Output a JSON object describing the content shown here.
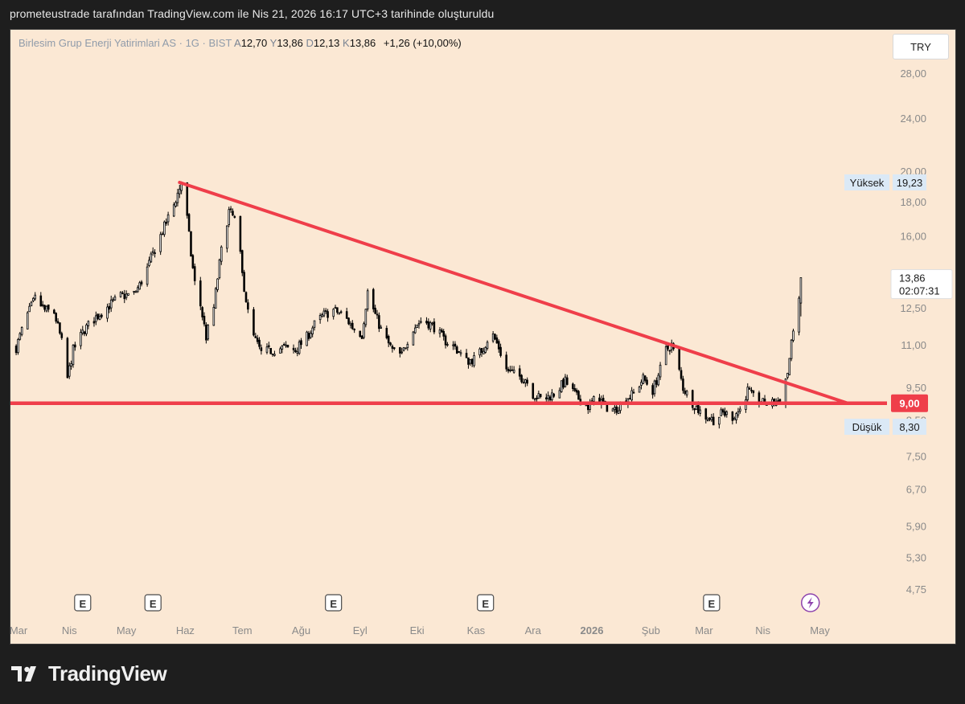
{
  "caption": "prometeustrade tarafından TradingView.com ile Nis 21, 2026 16:17 UTC+3 tarihinde oluşturuldu",
  "legend": {
    "symbol": "Birlesim Grup Enerji Yatirimlari AS · 1G · BIST",
    "open_label": "A",
    "open": "12,70",
    "high_label": "Y",
    "high": "13,86",
    "low_label": "D",
    "low": "12,13",
    "close_label": "K",
    "close": "13,86",
    "change": "+1,26 (+10,00%)"
  },
  "currency": "TRY",
  "brand": "TradingView",
  "chart_data": {
    "type": "candlestick",
    "y_scale": "log",
    "ylim": [
      4.4,
      31
    ],
    "y_ticks": [
      "28,00",
      "24,00",
      "20,00",
      "18,00",
      "16,00",
      "12,50",
      "11,00",
      "9,50",
      "8,50",
      "7,50",
      "6,70",
      "5,90",
      "5,30",
      "4,75"
    ],
    "x_labels": [
      "Mar",
      "Nis",
      "May",
      "Haz",
      "Tem",
      "Ağu",
      "Eyl",
      "Eki",
      "Kas",
      "Ara",
      "2026",
      "Şub",
      "Mar",
      "Nis",
      "May"
    ],
    "price_labels": [
      {
        "text": "Yüksek",
        "value": "19,23"
      },
      {
        "text": "Düşük",
        "value": "8,30"
      }
    ],
    "last_price": {
      "value": "13,86",
      "countdown": "02:07:31"
    },
    "support_level": {
      "value": 9.0,
      "label": "9,00"
    },
    "trendline": {
      "from": {
        "date": "2025-05-29",
        "price": 19.23
      },
      "to": {
        "date": "2026-05-03",
        "price": 9.0
      }
    },
    "earnings_markers": [
      "2025-04-08",
      "2025-05-15",
      "2025-08-18",
      "2025-11-06",
      "2026-03-05"
    ],
    "event_markers": [
      {
        "date": "2026-04-26",
        "icon": "lightning-icon"
      }
    ],
    "close_path": [
      [
        "2025-03-04",
        10.9
      ],
      [
        "2025-03-10",
        12.2
      ],
      [
        "2025-03-14",
        12.9
      ],
      [
        "2025-03-19",
        12.4
      ],
      [
        "2025-03-24",
        12.3
      ],
      [
        "2025-03-28",
        11.1
      ],
      [
        "2025-03-31",
        9.8
      ],
      [
        "2025-04-03",
        10.8
      ],
      [
        "2025-04-09",
        11.6
      ],
      [
        "2025-04-15",
        12.1
      ],
      [
        "2025-04-22",
        12.6
      ],
      [
        "2025-04-28",
        13.0
      ],
      [
        "2025-05-05",
        13.1
      ],
      [
        "2025-05-08",
        13.5
      ],
      [
        "2025-05-12",
        14.3
      ],
      [
        "2025-05-16",
        15.3
      ],
      [
        "2025-05-21",
        16.5
      ],
      [
        "2025-05-26",
        17.8
      ],
      [
        "2025-05-30",
        19.2
      ],
      [
        "2025-06-02",
        17.0
      ],
      [
        "2025-06-04",
        15.0
      ],
      [
        "2025-06-06",
        13.6
      ],
      [
        "2025-06-09",
        12.6
      ],
      [
        "2025-06-12",
        11.3
      ],
      [
        "2025-06-16",
        12.5
      ],
      [
        "2025-06-20",
        15.2
      ],
      [
        "2025-06-24",
        17.4
      ],
      [
        "2025-06-28",
        16.8
      ],
      [
        "2025-07-01",
        14.0
      ],
      [
        "2025-07-04",
        12.3
      ],
      [
        "2025-07-07",
        11.3
      ],
      [
        "2025-07-11",
        10.7
      ],
      [
        "2025-07-17",
        10.8
      ],
      [
        "2025-07-23",
        10.9
      ],
      [
        "2025-07-29",
        10.8
      ],
      [
        "2025-08-04",
        11.3
      ],
      [
        "2025-08-08",
        11.8
      ],
      [
        "2025-08-13",
        12.2
      ],
      [
        "2025-08-18",
        12.4
      ],
      [
        "2025-08-23",
        12.2
      ],
      [
        "2025-08-28",
        11.7
      ],
      [
        "2025-09-02",
        11.4
      ],
      [
        "2025-09-05",
        13.2
      ],
      [
        "2025-09-09",
        12.2
      ],
      [
        "2025-09-13",
        11.4
      ],
      [
        "2025-09-18",
        10.8
      ],
      [
        "2025-09-23",
        10.6
      ],
      [
        "2025-09-28",
        11.6
      ],
      [
        "2025-10-04",
        12.0
      ],
      [
        "2025-10-10",
        11.7
      ],
      [
        "2025-10-15",
        11.2
      ],
      [
        "2025-10-21",
        10.9
      ],
      [
        "2025-10-27",
        10.4
      ],
      [
        "2025-11-01",
        10.5
      ],
      [
        "2025-11-05",
        10.9
      ],
      [
        "2025-11-09",
        11.5
      ],
      [
        "2025-11-13",
        10.9
      ],
      [
        "2025-11-17",
        10.1
      ],
      [
        "2025-11-22",
        9.9
      ],
      [
        "2025-11-27",
        9.8
      ],
      [
        "2025-12-01",
        9.3
      ],
      [
        "2025-12-06",
        9.1
      ],
      [
        "2025-12-12",
        9.3
      ],
      [
        "2025-12-18",
        9.7
      ],
      [
        "2025-12-24",
        9.2
      ],
      [
        "2025-12-30",
        8.9
      ],
      [
        "2026-01-04",
        9.2
      ],
      [
        "2026-01-08",
        8.9
      ],
      [
        "2026-01-13",
        8.8
      ],
      [
        "2026-01-18",
        9.1
      ],
      [
        "2026-01-23",
        9.3
      ],
      [
        "2026-01-28",
        9.8
      ],
      [
        "2026-02-02",
        9.4
      ],
      [
        "2026-02-06",
        10.1
      ],
      [
        "2026-02-09",
        10.8
      ],
      [
        "2026-02-12",
        11.0
      ],
      [
        "2026-02-15",
        10.3
      ],
      [
        "2026-02-18",
        9.5
      ],
      [
        "2026-02-22",
        9.1
      ],
      [
        "2026-02-26",
        8.8
      ],
      [
        "2026-03-02",
        8.6
      ],
      [
        "2026-03-06",
        8.5
      ],
      [
        "2026-03-11",
        8.7
      ],
      [
        "2026-03-16",
        8.6
      ],
      [
        "2026-03-20",
        8.8
      ],
      [
        "2026-03-24",
        9.4
      ],
      [
        "2026-03-28",
        9.1
      ],
      [
        "2026-04-01",
        9.0
      ],
      [
        "2026-04-06",
        9.0
      ],
      [
        "2026-04-10",
        9.1
      ],
      [
        "2026-04-14",
        10.0
      ],
      [
        "2026-04-16",
        11.0
      ],
      [
        "2026-04-17",
        11.7
      ],
      [
        "2026-04-20",
        12.7
      ],
      [
        "2026-04-21",
        13.86
      ]
    ]
  },
  "colors": {
    "frame_bg": "#fbe8d4",
    "candle": "#000000",
    "trendline": "#ef3e4a",
    "support_label_bg": "#ef3e4a",
    "axis_text": "#8a8a8a"
  }
}
